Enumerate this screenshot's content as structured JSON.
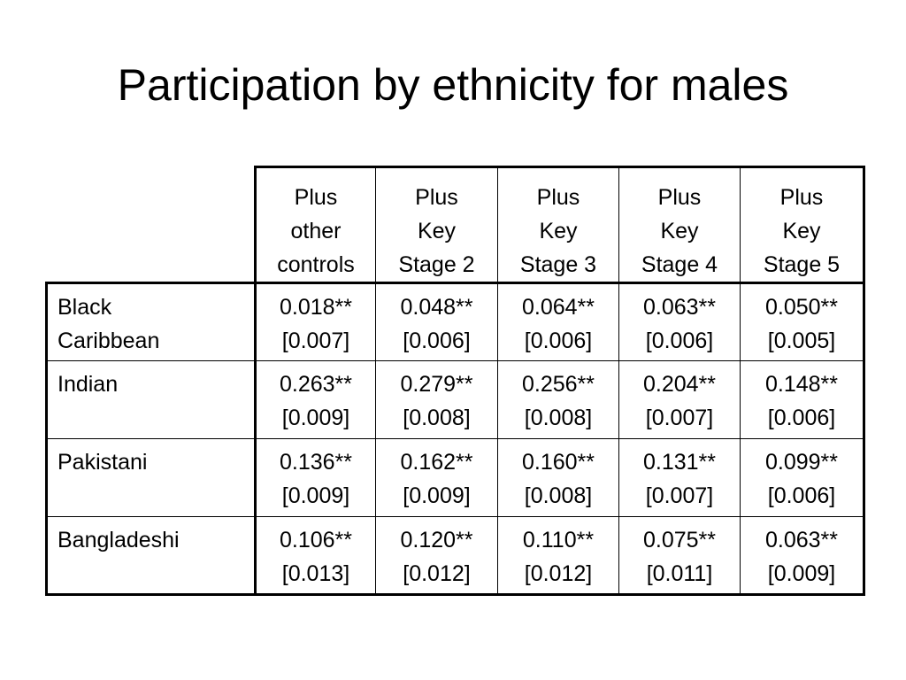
{
  "title": "Participation by ethnicity for males",
  "table": {
    "columns": [
      {
        "lines": [
          "Plus",
          "other",
          "controls"
        ]
      },
      {
        "lines": [
          "Plus",
          "Key",
          "Stage 2"
        ]
      },
      {
        "lines": [
          "Plus",
          "Key",
          "Stage 3"
        ]
      },
      {
        "lines": [
          "Plus",
          "Key",
          "Stage 4"
        ]
      },
      {
        "lines": [
          "Plus",
          "Key",
          "Stage 5"
        ]
      }
    ],
    "rows": [
      {
        "label_lines": [
          "Black",
          "Caribbean"
        ],
        "cells": [
          {
            "value": "0.018**",
            "se": "[0.007]"
          },
          {
            "value": "0.048**",
            "se": "[0.006]"
          },
          {
            "value": "0.064**",
            "se": "[0.006]"
          },
          {
            "value": "0.063**",
            "se": "[0.006]"
          },
          {
            "value": "0.050**",
            "se": "[0.005]"
          }
        ]
      },
      {
        "label_lines": [
          "Indian"
        ],
        "cells": [
          {
            "value": "0.263**",
            "se": "[0.009]"
          },
          {
            "value": "0.279**",
            "se": "[0.008]"
          },
          {
            "value": "0.256**",
            "se": "[0.008]"
          },
          {
            "value": "0.204**",
            "se": "[0.007]"
          },
          {
            "value": "0.148**",
            "se": "[0.006]"
          }
        ]
      },
      {
        "label_lines": [
          "Pakistani"
        ],
        "cells": [
          {
            "value": "0.136**",
            "se": "[0.009]"
          },
          {
            "value": "0.162**",
            "se": "[0.009]"
          },
          {
            "value": "0.160**",
            "se": "[0.008]"
          },
          {
            "value": "0.131**",
            "se": "[0.007]"
          },
          {
            "value": "0.099**",
            "se": "[0.006]"
          }
        ]
      },
      {
        "label_lines": [
          "Bangladeshi"
        ],
        "cells": [
          {
            "value": "0.106**",
            "se": "[0.013]"
          },
          {
            "value": "0.120**",
            "se": "[0.012]"
          },
          {
            "value": "0.110**",
            "se": "[0.012]"
          },
          {
            "value": "0.075**",
            "se": "[0.011]"
          },
          {
            "value": "0.063**",
            "se": "[0.009]"
          }
        ]
      }
    ]
  }
}
